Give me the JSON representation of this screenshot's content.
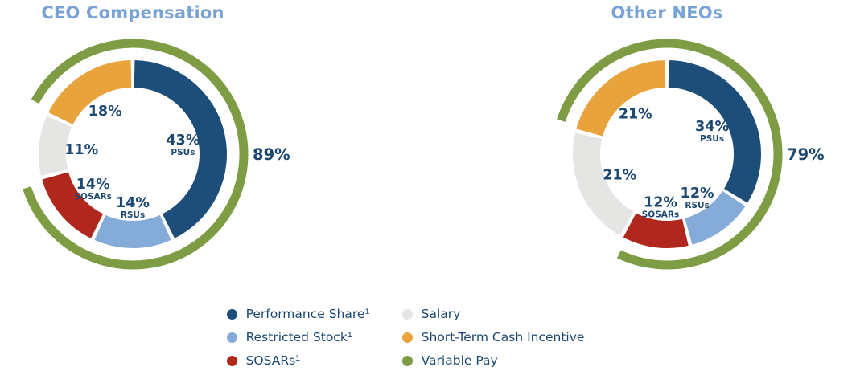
{
  "page": {
    "background": "#ffffff"
  },
  "colors": {
    "psu": "#1d4e79",
    "rsu": "#85abd8",
    "sosar": "#b0271d",
    "salary": "#e5e5e3",
    "sti": "#e8a33d",
    "variable": "#7d9c44",
    "label_text": "#1c4872",
    "title_text": "#79a3d4"
  },
  "chart_data": [
    {
      "type": "pie",
      "variant": "donut",
      "title": "CEO Compensation",
      "legend_position": "bottom",
      "segments": [
        {
          "name": "PSUs",
          "value": 43,
          "label": "43%",
          "sublabel": "PSUs",
          "color": "psu"
        },
        {
          "name": "RSUs",
          "value": 14,
          "label": "14%",
          "sublabel": "RSUs",
          "color": "rsu"
        },
        {
          "name": "SOSARs",
          "value": 14,
          "label": "14%",
          "sublabel": "SOSARs",
          "color": "sosar"
        },
        {
          "name": "Salary",
          "value": 11,
          "label": "11%",
          "sublabel": "",
          "color": "salary"
        },
        {
          "name": "Short-Term Cash Incentive",
          "value": 18,
          "label": "18%",
          "sublabel": "",
          "color": "sti"
        }
      ],
      "outer_ring": {
        "name": "Variable Pay",
        "value": 89,
        "label": "89%",
        "color": "variable",
        "excludes": "Salary"
      }
    },
    {
      "type": "pie",
      "variant": "donut",
      "title": "Other NEOs",
      "legend_position": "bottom",
      "segments": [
        {
          "name": "PSUs",
          "value": 34,
          "label": "34%",
          "sublabel": "PSUs",
          "color": "psu"
        },
        {
          "name": "RSUs",
          "value": 12,
          "label": "12%",
          "sublabel": "RSUs",
          "color": "rsu"
        },
        {
          "name": "SOSARs",
          "value": 12,
          "label": "12%",
          "sublabel": "SOSARs",
          "color": "sosar"
        },
        {
          "name": "Salary",
          "value": 21,
          "label": "21%",
          "sublabel": "",
          "color": "salary"
        },
        {
          "name": "Short-Term Cash Incentive",
          "value": 21,
          "label": "21%",
          "sublabel": "",
          "color": "sti"
        }
      ],
      "outer_ring": {
        "name": "Variable Pay",
        "value": 79,
        "label": "79%",
        "color": "variable",
        "excludes": "Salary"
      }
    }
  ],
  "legend": [
    {
      "label": "Performance Share¹",
      "color": "psu"
    },
    {
      "label": "Restricted Stock¹",
      "color": "rsu"
    },
    {
      "label": "SOSARs¹",
      "color": "sosar"
    },
    {
      "label": "Salary",
      "color": "salary"
    },
    {
      "label": "Short-Term Cash Incentive",
      "color": "sti"
    },
    {
      "label": "Variable Pay",
      "color": "variable"
    }
  ]
}
